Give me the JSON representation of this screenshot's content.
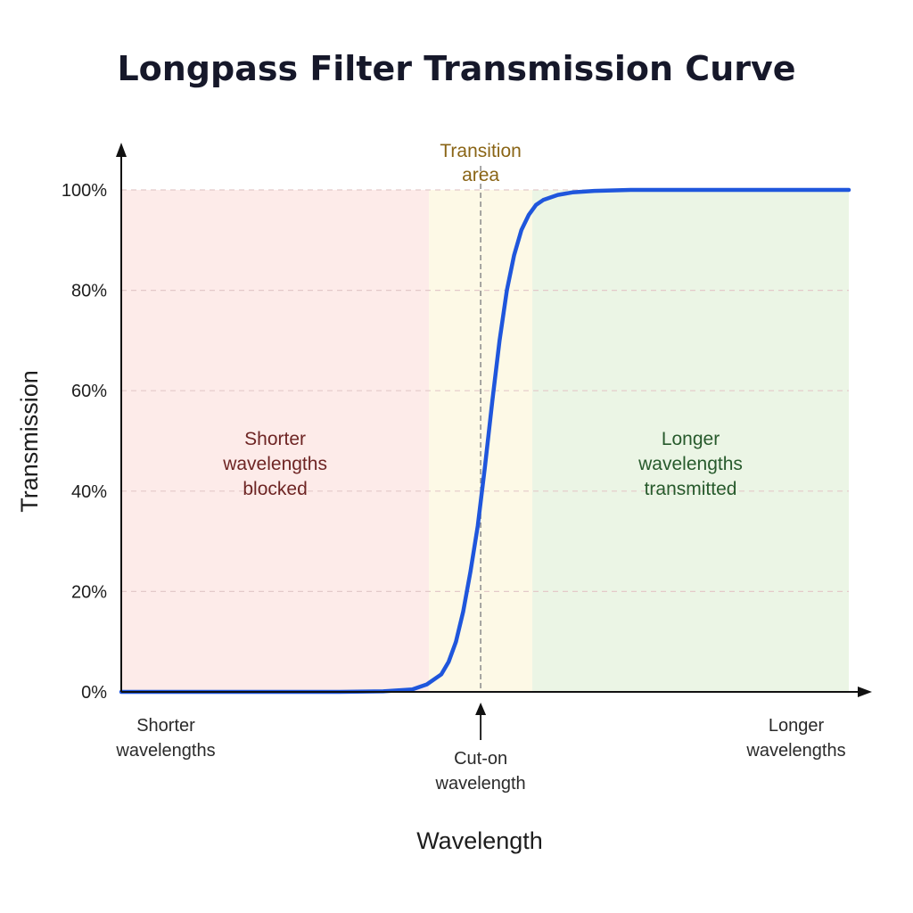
{
  "chart_data": {
    "type": "line",
    "title": "Longpass Filter Transmission Curve",
    "xlabel": "Wavelength",
    "ylabel": "Transmission",
    "yticks": [
      "0%",
      "20%",
      "40%",
      "60%",
      "80%",
      "100%"
    ],
    "ylim": [
      0,
      100
    ],
    "xlim": [
      0,
      100
    ],
    "grid": true,
    "x_end_labels": {
      "left": [
        "Shorter",
        "wavelengths"
      ],
      "right": [
        "Longer",
        "wavelengths"
      ]
    },
    "cut_on": {
      "x": 49.4,
      "label": [
        "Cut-on",
        "wavelength"
      ]
    },
    "regions": [
      {
        "id": "blocked",
        "x0": 0,
        "x1": 42.3,
        "label": [
          "Shorter",
          "wavelengths",
          "blocked"
        ]
      },
      {
        "id": "transition",
        "x0": 42.3,
        "x1": 56.5,
        "label": [
          "Transition",
          "area"
        ]
      },
      {
        "id": "transmitted",
        "x0": 56.5,
        "x1": 100,
        "label": [
          "Longer",
          "wavelengths",
          "transmitted"
        ]
      }
    ],
    "series": [
      {
        "x": [
          0,
          10,
          20,
          30,
          36,
          40,
          42,
          44,
          45,
          46,
          47,
          48,
          49,
          50,
          51,
          52,
          53,
          54,
          55,
          56,
          57,
          58,
          60,
          62,
          65,
          70,
          80,
          90,
          100
        ],
        "y": [
          0,
          0,
          0,
          0,
          0.1,
          0.5,
          1.5,
          3.5,
          6,
          10,
          16,
          24,
          33,
          45,
          58,
          70,
          80,
          87,
          92,
          95,
          97,
          98,
          99,
          99.5,
          99.8,
          100,
          100,
          100,
          100
        ]
      }
    ]
  },
  "colors": {
    "curve": "#1f56dc",
    "blocked_fill": "#fdebe9",
    "transition_fill": "#fdf9e6",
    "transmitted_fill": "#ebf5e5",
    "blocked_text": "#6e2524",
    "transition_text": "#8a6516",
    "transmitted_text": "#275a2c",
    "grid": "#e3c9c9",
    "axis": "#111111"
  }
}
